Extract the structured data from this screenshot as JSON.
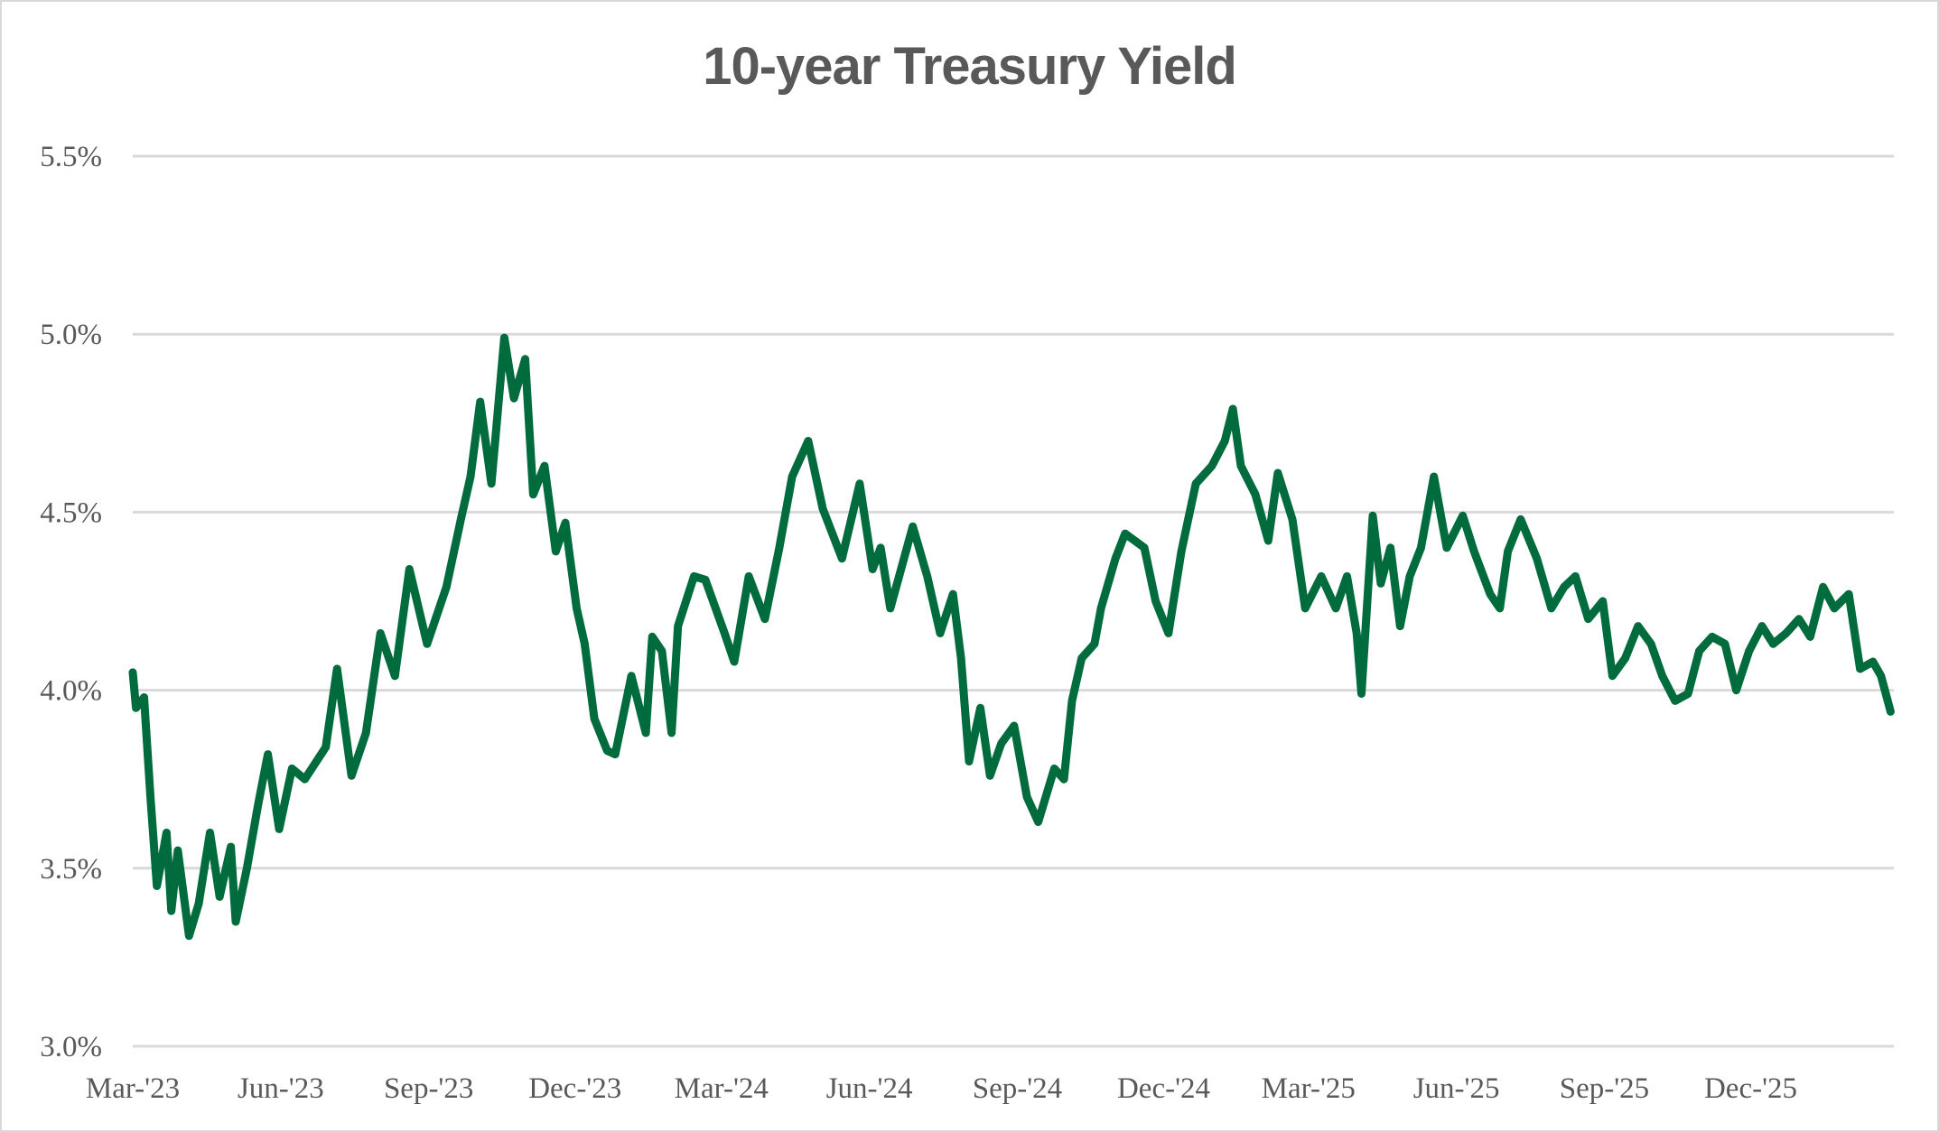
{
  "chart_data": {
    "type": "line",
    "title": "10-year Treasury Yield",
    "xlabel": "",
    "ylabel": "",
    "ylim": [
      3.0,
      5.5
    ],
    "xlim": [
      "2023-03-01",
      "2026-02-28"
    ],
    "y_ticks": [
      "3.0%",
      "3.5%",
      "4.0%",
      "4.5%",
      "5.0%",
      "5.5%"
    ],
    "y_tick_values": [
      3.0,
      3.5,
      4.0,
      4.5,
      5.0,
      5.5
    ],
    "x_ticks": [
      "Mar-'23",
      "Jun-'23",
      "Sep-'23",
      "Dec-'23",
      "Mar-'24",
      "Jun-'24",
      "Sep-'24",
      "Dec-'24",
      "Mar-'25",
      "Jun-'25",
      "Sep-'25",
      "Dec-'25"
    ],
    "x_tick_dates": [
      "2023-03-01",
      "2023-06-01",
      "2023-09-01",
      "2023-12-01",
      "2024-03-01",
      "2024-06-01",
      "2024-09-01",
      "2024-12-01",
      "2025-03-01",
      "2025-06-01",
      "2025-09-01",
      "2025-12-01"
    ],
    "grid": "horizontal",
    "legend": "none",
    "line_color": "#006B3C",
    "series": [
      {
        "x": [
          "2023-03-01",
          "2023-03-03",
          "2023-03-08",
          "2023-03-12",
          "2023-03-16",
          "2023-03-22",
          "2023-03-25",
          "2023-03-29",
          "2023-04-05",
          "2023-04-11",
          "2023-04-18",
          "2023-04-24",
          "2023-05-01",
          "2023-05-04",
          "2023-05-11",
          "2023-05-18",
          "2023-05-24",
          "2023-05-31",
          "2023-06-08",
          "2023-06-16",
          "2023-06-29",
          "2023-07-06",
          "2023-07-15",
          "2023-07-24",
          "2023-08-02",
          "2023-08-11",
          "2023-08-20",
          "2023-08-31",
          "2023-09-12",
          "2023-09-21",
          "2023-09-27",
          "2023-10-03",
          "2023-10-10",
          "2023-10-18",
          "2023-10-24",
          "2023-10-31",
          "2023-11-05",
          "2023-11-12",
          "2023-11-19",
          "2023-11-25",
          "2023-12-02",
          "2023-12-07",
          "2023-12-13",
          "2023-12-21",
          "2023-12-26",
          "2024-01-05",
          "2024-01-14",
          "2024-01-18",
          "2024-01-24",
          "2024-01-30",
          "2024-02-03",
          "2024-02-13",
          "2024-02-20",
          "2024-03-03",
          "2024-03-09",
          "2024-03-18",
          "2024-03-28",
          "2024-04-06",
          "2024-04-14",
          "2024-04-24",
          "2024-05-03",
          "2024-05-15",
          "2024-05-26",
          "2024-06-03",
          "2024-06-08",
          "2024-06-14",
          "2024-06-28",
          "2024-07-07",
          "2024-07-15",
          "2024-07-23",
          "2024-07-28",
          "2024-08-02",
          "2024-08-09",
          "2024-08-15",
          "2024-08-22",
          "2024-08-30",
          "2024-09-07",
          "2024-09-14",
          "2024-09-24",
          "2024-09-30",
          "2024-10-05",
          "2024-10-11",
          "2024-10-19",
          "2024-10-23",
          "2024-11-01",
          "2024-11-07",
          "2024-11-19",
          "2024-11-26",
          "2024-12-04",
          "2024-12-12",
          "2024-12-21",
          "2024-12-31",
          "2025-01-08",
          "2025-01-13",
          "2025-01-18",
          "2025-01-27",
          "2025-02-04",
          "2025-02-10",
          "2025-02-19",
          "2025-02-27",
          "2025-03-09",
          "2025-03-18",
          "2025-03-25",
          "2025-03-31",
          "2025-04-03",
          "2025-04-10",
          "2025-04-15",
          "2025-04-21",
          "2025-04-27",
          "2025-05-03",
          "2025-05-10",
          "2025-05-18",
          "2025-05-26",
          "2025-06-05",
          "2025-06-12",
          "2025-06-22",
          "2025-06-28",
          "2025-07-03",
          "2025-07-11",
          "2025-07-21",
          "2025-07-30",
          "2025-08-07",
          "2025-08-14",
          "2025-08-22",
          "2025-08-31",
          "2025-09-06",
          "2025-09-14",
          "2025-09-22",
          "2025-09-30",
          "2025-10-07",
          "2025-10-15",
          "2025-10-23",
          "2025-10-30",
          "2025-11-07",
          "2025-11-15",
          "2025-11-22",
          "2025-11-30",
          "2025-12-08",
          "2025-12-15",
          "2025-12-23",
          "2025-12-31",
          "2026-01-07",
          "2026-01-15",
          "2026-01-22",
          "2026-01-31",
          "2026-02-07",
          "2026-02-15",
          "2026-02-20",
          "2026-02-26"
        ],
        "y": [
          4.05,
          3.95,
          3.98,
          3.7,
          3.45,
          3.6,
          3.38,
          3.55,
          3.31,
          3.4,
          3.6,
          3.42,
          3.56,
          3.35,
          3.5,
          3.68,
          3.82,
          3.61,
          3.78,
          3.75,
          3.84,
          4.06,
          3.76,
          3.88,
          4.16,
          4.04,
          4.34,
          4.13,
          4.29,
          4.48,
          4.6,
          4.81,
          4.58,
          4.99,
          4.82,
          4.93,
          4.55,
          4.63,
          4.39,
          4.47,
          4.23,
          4.13,
          3.92,
          3.83,
          3.82,
          4.04,
          3.88,
          4.15,
          4.11,
          3.88,
          4.18,
          4.32,
          4.31,
          4.16,
          4.08,
          4.32,
          4.2,
          4.4,
          4.6,
          4.7,
          4.51,
          4.37,
          4.58,
          4.34,
          4.4,
          4.23,
          4.46,
          4.32,
          4.16,
          4.27,
          4.09,
          3.8,
          3.95,
          3.76,
          3.85,
          3.9,
          3.7,
          3.63,
          3.78,
          3.75,
          3.97,
          4.09,
          4.13,
          4.23,
          4.37,
          4.44,
          4.4,
          4.25,
          4.16,
          4.39,
          4.58,
          4.63,
          4.7,
          4.79,
          4.63,
          4.55,
          4.42,
          4.61,
          4.48,
          4.23,
          4.32,
          4.23,
          4.32,
          4.16,
          3.99,
          4.49,
          4.3,
          4.4,
          4.18,
          4.32,
          4.4,
          4.6,
          4.4,
          4.49,
          4.39,
          4.27,
          4.23,
          4.39,
          4.48,
          4.37,
          4.23,
          4.29,
          4.32,
          4.2,
          4.25,
          4.04,
          4.09,
          4.18,
          4.13,
          4.04,
          3.97,
          3.99,
          4.11,
          4.15,
          4.13,
          4.0,
          4.11,
          4.18,
          4.13,
          4.16,
          4.2,
          4.15,
          4.29,
          4.23,
          4.27,
          4.06,
          4.08,
          4.04,
          3.94
        ]
      }
    ]
  }
}
